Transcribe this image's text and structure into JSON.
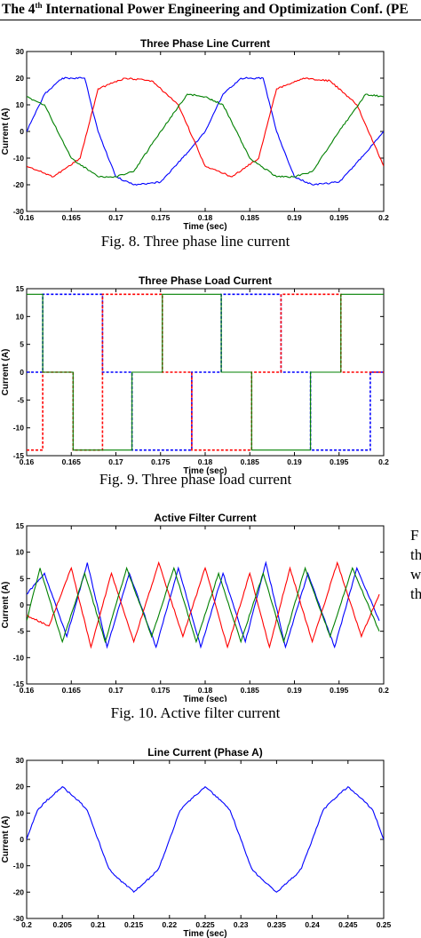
{
  "header": {
    "before": "The 4",
    "sup": "th",
    "after": " International Power Engineering and Optimization Conf. (PE"
  },
  "side_text": [
    "F",
    "th",
    "w",
    "th"
  ],
  "captions": [
    "Fig. 8. Three phase line current",
    "Fig. 9. Three phase load current",
    "",
    "Fig. 10. Active filter current",
    ""
  ],
  "colors": {
    "phase_a": "#0000ff",
    "phase_b": "#ff0000",
    "phase_c": "#008000",
    "axis": "#000000"
  },
  "chart_data": [
    {
      "type": "line",
      "title": "Three Phase Line Current",
      "xlabel": "Time (sec)",
      "ylabel": "Current (A)",
      "xlim": [
        0.16,
        0.2
      ],
      "ylim": [
        -30,
        30
      ],
      "xticks": [
        0.16,
        0.165,
        0.17,
        0.175,
        0.18,
        0.185,
        0.19,
        0.195,
        0.2
      ],
      "yticks": [
        -30,
        -20,
        -10,
        0,
        10,
        20,
        30
      ],
      "xtick_labels": [
        "0.16",
        "0.165",
        "0.17",
        "0.175",
        "0.18",
        "0.185",
        "0.19",
        "0.195",
        "0.2"
      ],
      "ytick_labels": [
        "-30",
        "-20",
        "-10",
        "0",
        "10",
        "20",
        "30"
      ],
      "series": [
        {
          "color": "#0000ff",
          "x": [
            0.16,
            0.162,
            0.164,
            0.1665,
            0.168,
            0.17,
            0.172,
            0.175,
            0.178,
            0.18,
            0.182,
            0.184,
            0.1865,
            0.188,
            0.19,
            0.192,
            0.195,
            0.198,
            0.2
          ],
          "y": [
            0,
            14,
            20,
            20,
            0,
            -17,
            -20,
            -19,
            -8,
            0,
            14,
            20,
            20,
            0,
            -17,
            -20,
            -19,
            -8,
            0
          ]
        },
        {
          "color": "#ff0000",
          "x": [
            0.16,
            0.163,
            0.166,
            0.168,
            0.171,
            0.174,
            0.177,
            0.18,
            0.183,
            0.186,
            0.188,
            0.191,
            0.194,
            0.197,
            0.2
          ],
          "y": [
            -13,
            -17,
            -10,
            16,
            20,
            19,
            10,
            -13,
            -17,
            -10,
            16,
            20,
            19,
            10,
            -13
          ]
        },
        {
          "color": "#008000",
          "x": [
            0.16,
            0.162,
            0.165,
            0.168,
            0.17,
            0.172,
            0.175,
            0.178,
            0.18,
            0.182,
            0.185,
            0.188,
            0.19,
            0.192,
            0.195,
            0.198,
            0.2
          ],
          "y": [
            13,
            10,
            -10,
            -17,
            -17,
            -15,
            0,
            14,
            13,
            10,
            -10,
            -17,
            -17,
            -15,
            0,
            14,
            13
          ]
        }
      ]
    },
    {
      "type": "line",
      "title": "Three Phase Load Current",
      "xlabel": "Time (sec)",
      "ylabel": "Current (A)",
      "xlim": [
        0.16,
        0.2
      ],
      "ylim": [
        -15,
        15
      ],
      "xticks": [
        0.16,
        0.165,
        0.17,
        0.175,
        0.18,
        0.185,
        0.19,
        0.195,
        0.2
      ],
      "yticks": [
        -15,
        -10,
        -5,
        0,
        5,
        10,
        15
      ],
      "xtick_labels": [
        "0.16",
        "0.165",
        "0.17",
        "0.175",
        "0.18",
        "0.185",
        "0.19",
        "0.195",
        "0.2"
      ],
      "ytick_labels": [
        "-15",
        "-10",
        "-5",
        "0",
        "5",
        "10",
        "15"
      ],
      "series": [
        {
          "color": "#0000ff",
          "dash": true,
          "x": [
            0.16,
            0.1618,
            0.1618,
            0.1685,
            0.1685,
            0.1718,
            0.1718,
            0.1785,
            0.1785,
            0.1818,
            0.1818,
            0.1885,
            0.1885,
            0.1918,
            0.1918,
            0.1985,
            0.1985,
            0.2
          ],
          "y": [
            0,
            0,
            14,
            14,
            0,
            0,
            -14,
            -14,
            0,
            0,
            14,
            14,
            0,
            0,
            -14,
            -14,
            0,
            0
          ]
        },
        {
          "color": "#ff0000",
          "dash": true,
          "x": [
            0.16,
            0.1618,
            0.1618,
            0.1652,
            0.1652,
            0.1685,
            0.1685,
            0.1752,
            0.1752,
            0.1785,
            0.1785,
            0.1852,
            0.1852,
            0.1885,
            0.1885,
            0.1952,
            0.1952,
            0.2
          ],
          "y": [
            -14,
            -14,
            0,
            0,
            -14,
            -14,
            14,
            14,
            0,
            0,
            -14,
            -14,
            0,
            0,
            14,
            14,
            0,
            0
          ]
        },
        {
          "color": "#008000",
          "x": [
            0.16,
            0.1618,
            0.1618,
            0.1652,
            0.1652,
            0.1718,
            0.1718,
            0.1752,
            0.1752,
            0.1818,
            0.1818,
            0.1852,
            0.1852,
            0.1918,
            0.1918,
            0.1952,
            0.1952,
            0.2
          ],
          "y": [
            14,
            14,
            0,
            0,
            -14,
            -14,
            0,
            0,
            14,
            14,
            0,
            0,
            -14,
            -14,
            0,
            0,
            14,
            14
          ]
        }
      ]
    },
    {
      "type": "line",
      "title": "Active Filter Current",
      "xlabel": "Time (sec)",
      "ylabel": "Current (A)",
      "xlim": [
        0.16,
        0.2
      ],
      "ylim": [
        -15,
        15
      ],
      "xticks": [
        0.16,
        0.165,
        0.17,
        0.175,
        0.18,
        0.185,
        0.19,
        0.195,
        0.2
      ],
      "yticks": [
        -15,
        -10,
        -5,
        0,
        5,
        10,
        15
      ],
      "xtick_labels": [
        "0.16",
        "0.165",
        "0.17",
        "0.175",
        "0.18",
        "0.185",
        "0.19",
        "0.195",
        "0.2"
      ],
      "ytick_labels": [
        "-15",
        "-10",
        "-5",
        "0",
        "5",
        "10",
        "15"
      ],
      "series": [
        {
          "color": "#0000ff",
          "x": [
            0.16,
            0.162,
            0.1645,
            0.1668,
            0.169,
            0.1715,
            0.1745,
            0.177,
            0.1795,
            0.182,
            0.1845,
            0.1868,
            0.189,
            0.1915,
            0.1945,
            0.197,
            0.1995
          ],
          "y": [
            2,
            6,
            -6,
            8,
            -8,
            6,
            -8,
            7,
            -8,
            6,
            -7,
            8,
            -8,
            6,
            -8,
            7,
            -3
          ]
        },
        {
          "color": "#ff0000",
          "x": [
            0.16,
            0.1625,
            0.165,
            0.1672,
            0.1695,
            0.172,
            0.1748,
            0.1775,
            0.18,
            0.1825,
            0.185,
            0.1872,
            0.1895,
            0.192,
            0.1948,
            0.1975,
            0.1995
          ],
          "y": [
            -2,
            -4,
            7,
            -8,
            6,
            -7,
            8,
            -6,
            7,
            -8,
            6,
            -8,
            7,
            -7,
            8,
            -6,
            2
          ]
        },
        {
          "color": "#008000",
          "x": [
            0.16,
            0.1615,
            0.164,
            0.1665,
            0.1688,
            0.1712,
            0.174,
            0.1765,
            0.179,
            0.1815,
            0.184,
            0.1865,
            0.1888,
            0.1912,
            0.194,
            0.1965,
            0.1995
          ],
          "y": [
            -3,
            7,
            -7,
            6,
            -7,
            7,
            -6,
            7,
            -7,
            6,
            -7,
            6,
            -7,
            7,
            -6,
            7,
            -5
          ]
        }
      ]
    },
    {
      "type": "line",
      "title": "Line Current (Phase A)",
      "xlabel": "Time (sec)",
      "ylabel": "Current (A)",
      "xlim": [
        0.2,
        0.25
      ],
      "ylim": [
        -30,
        30
      ],
      "xticks": [
        0.2,
        0.205,
        0.21,
        0.215,
        0.22,
        0.225,
        0.23,
        0.235,
        0.24,
        0.245,
        0.25
      ],
      "yticks": [
        -30,
        -20,
        -10,
        0,
        10,
        20,
        30
      ],
      "xtick_labels": [
        "0.2",
        "0.205",
        "0.21",
        "0.215",
        "0.22",
        "0.225",
        "0.23",
        "0.235",
        "0.24",
        "0.245",
        "0.25"
      ],
      "ytick_labels": [
        "-30",
        "-20",
        "-10",
        "0",
        "10",
        "20",
        "30"
      ],
      "series": [
        {
          "color": "#0000ff",
          "x": [
            0.2,
            0.2015,
            0.2025,
            0.205,
            0.2075,
            0.2085,
            0.21,
            0.2115,
            0.2125,
            0.215,
            0.2175,
            0.2185,
            0.22,
            0.2215,
            0.2225,
            0.225,
            0.2275,
            0.2285,
            0.23,
            0.2315,
            0.2325,
            0.235,
            0.2375,
            0.2385,
            0.24,
            0.2415,
            0.2425,
            0.245,
            0.2475,
            0.2485,
            0.25
          ],
          "y": [
            0,
            11,
            14,
            20,
            14,
            11,
            0,
            -11,
            -14,
            -20,
            -14,
            -11,
            0,
            11,
            14,
            20,
            14,
            11,
            0,
            -11,
            -14,
            -20,
            -14,
            -11,
            0,
            11,
            14,
            20,
            14,
            11,
            0
          ]
        }
      ]
    }
  ]
}
